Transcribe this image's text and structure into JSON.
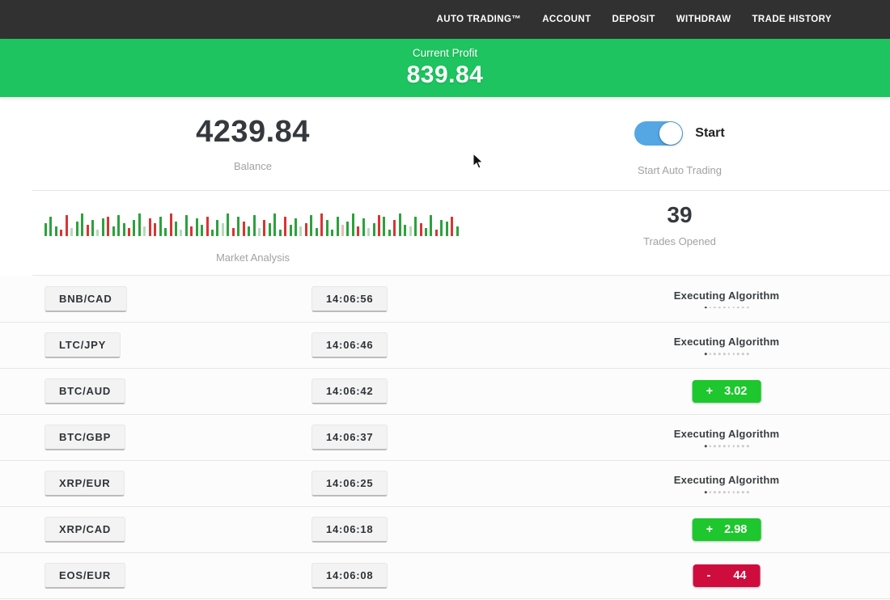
{
  "nav": {
    "items": [
      "AUTO TRADING™",
      "ACCOUNT",
      "DEPOSIT",
      "WITHDRAW",
      "TRADE HISTORY"
    ]
  },
  "banner": {
    "label": "Current Profit",
    "value": "839.84"
  },
  "summary": {
    "balance": {
      "value": "4239.84",
      "label": "Balance"
    },
    "auto_trading": {
      "toggle_label": "Start",
      "label": "Start Auto Trading",
      "toggle_on": true
    },
    "market": {
      "label": "Market Analysis",
      "bars": [
        "g16",
        "g24",
        "g12",
        "r8",
        "r26",
        "G10",
        "g18",
        "g28",
        "r14",
        "g20",
        "G8",
        "g22",
        "r24",
        "g12",
        "g26",
        "g16",
        "r10",
        "g20",
        "g28",
        "G12",
        "r22",
        "r16",
        "g24",
        "g10",
        "r28",
        "g18",
        "G8",
        "g26",
        "r12",
        "g22",
        "g14",
        "r24",
        "g8",
        "g20",
        "G16",
        "g28",
        "r10",
        "g24",
        "r18",
        "g12",
        "g26",
        "G10",
        "r20",
        "g16",
        "g28",
        "g8",
        "r24",
        "g14",
        "g22",
        "G12",
        "r16",
        "g26",
        "g10",
        "r28",
        "g20",
        "g8",
        "g24",
        "R14",
        "g18",
        "g28",
        "r12",
        "g22",
        "G10",
        "g16",
        "r26",
        "g24",
        "g8",
        "r20",
        "g28",
        "g14",
        "G12",
        "g24",
        "r16",
        "g10",
        "g26",
        "r8",
        "g20",
        "g18",
        "r24",
        "g12"
      ]
    },
    "trades_opened": {
      "value": "39",
      "label": "Trades Opened"
    }
  },
  "trades": {
    "executing_label": "Executing Algorithm",
    "progress_dots": 10,
    "rows": [
      {
        "pair": "BNB/CAD",
        "time": "14:06:56",
        "status": "executing",
        "sign": "",
        "value": ""
      },
      {
        "pair": "LTC/JPY",
        "time": "14:06:46",
        "status": "executing",
        "sign": "",
        "value": ""
      },
      {
        "pair": "BTC/AUD",
        "time": "14:06:42",
        "status": "profit",
        "sign": "+",
        "value": "3.02"
      },
      {
        "pair": "BTC/GBP",
        "time": "14:06:37",
        "status": "executing",
        "sign": "",
        "value": ""
      },
      {
        "pair": "XRP/EUR",
        "time": "14:06:25",
        "status": "executing",
        "sign": "",
        "value": ""
      },
      {
        "pair": "XRP/CAD",
        "time": "14:06:18",
        "status": "profit",
        "sign": "+",
        "value": "2.98"
      },
      {
        "pair": "EOS/EUR",
        "time": "14:06:08",
        "status": "loss",
        "sign": "-",
        "value": "44"
      }
    ]
  },
  "colors": {
    "nav_bg": "#313131",
    "banner_green": "#1ec45f",
    "toggle_blue": "#54a7e2",
    "profit_green": "#1dc72d",
    "loss_red": "#ce0d3e",
    "bar_green": "#2ca23c",
    "bar_red": "#d93434",
    "bar_pale_green": "#b8d8ba",
    "bar_pale_red": "#e6bcbc"
  }
}
